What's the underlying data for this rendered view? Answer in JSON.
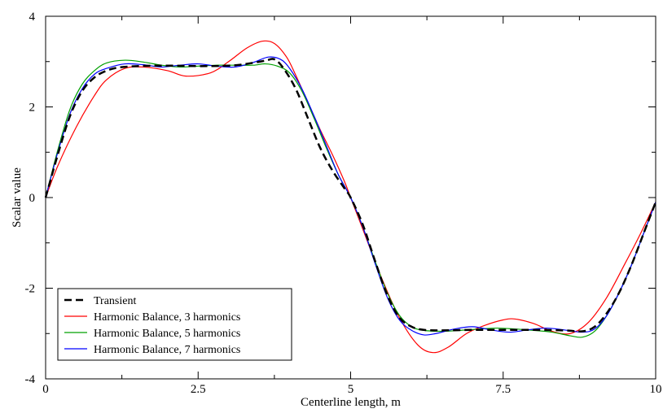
{
  "chart_data": {
    "type": "line",
    "xlabel": "Centerline length, m",
    "ylabel": "Scalar value",
    "xlim": [
      0,
      10
    ],
    "ylim": [
      -4,
      4
    ],
    "x_ticks": [
      "0",
      "2.5",
      "5",
      "7.5",
      "10"
    ],
    "y_ticks": [
      "-4",
      "-2",
      "0",
      "2",
      "4"
    ],
    "grid": false,
    "legend_position": "bottom-left",
    "series": [
      {
        "name": "Transient",
        "color": "#000000",
        "style": "dashed",
        "x": [
          0.0,
          0.2,
          0.4,
          0.6,
          0.8,
          1.0,
          1.2,
          1.5,
          1.8,
          2.1,
          2.5,
          3.0,
          3.3,
          3.6,
          3.75,
          3.9,
          4.1,
          4.3,
          4.5,
          4.7,
          4.9,
          5.0,
          5.2,
          5.4,
          5.6,
          5.8,
          6.0,
          6.2,
          6.5,
          7.0,
          7.5,
          8.0,
          8.5,
          8.8,
          9.0,
          9.2,
          9.4,
          9.6,
          9.8,
          10.0
        ],
        "y": [
          0.0,
          0.95,
          1.8,
          2.35,
          2.65,
          2.8,
          2.87,
          2.9,
          2.91,
          2.91,
          2.9,
          2.91,
          2.95,
          3.02,
          3.05,
          2.85,
          2.4,
          1.75,
          1.1,
          0.6,
          0.2,
          0.0,
          -0.6,
          -1.4,
          -2.15,
          -2.65,
          -2.85,
          -2.92,
          -2.93,
          -2.92,
          -2.92,
          -2.92,
          -2.93,
          -2.95,
          -2.85,
          -2.55,
          -2.1,
          -1.5,
          -0.8,
          -0.1
        ]
      },
      {
        "name": "Harmonic Balance, 3 harmonics",
        "color": "#ff0000",
        "style": "solid",
        "x": [
          0.0,
          0.2,
          0.5,
          0.8,
          1.0,
          1.3,
          1.6,
          2.0,
          2.3,
          2.7,
          3.0,
          3.3,
          3.55,
          3.75,
          3.95,
          4.1,
          4.3,
          4.5,
          4.7,
          4.9,
          5.0,
          5.2,
          5.5,
          5.8,
          6.1,
          6.35,
          6.6,
          6.9,
          7.2,
          7.5,
          7.7,
          8.0,
          8.3,
          8.6,
          8.9,
          9.2,
          9.5,
          9.75,
          10.0
        ],
        "y": [
          0.0,
          0.7,
          1.55,
          2.25,
          2.6,
          2.85,
          2.88,
          2.8,
          2.68,
          2.75,
          3.0,
          3.3,
          3.45,
          3.4,
          3.1,
          2.7,
          2.1,
          1.5,
          0.95,
          0.35,
          0.0,
          -0.7,
          -1.75,
          -2.65,
          -3.25,
          -3.42,
          -3.3,
          -3.0,
          -2.82,
          -2.7,
          -2.68,
          -2.78,
          -2.95,
          -3.0,
          -2.75,
          -2.2,
          -1.45,
          -0.8,
          -0.1
        ]
      },
      {
        "name": "Harmonic Balance, 5 harmonics",
        "color": "#00a000",
        "style": "solid",
        "x": [
          0.0,
          0.2,
          0.4,
          0.6,
          0.8,
          1.0,
          1.3,
          1.6,
          1.9,
          2.2,
          2.5,
          2.8,
          3.1,
          3.4,
          3.6,
          3.8,
          4.0,
          4.2,
          4.4,
          4.6,
          4.8,
          5.0,
          5.2,
          5.4,
          5.6,
          5.8,
          6.0,
          6.2,
          6.5,
          6.8,
          7.1,
          7.4,
          7.7,
          8.0,
          8.3,
          8.6,
          8.8,
          9.0,
          9.2,
          9.4,
          9.6,
          9.8,
          10.0
        ],
        "y": [
          0.0,
          1.05,
          1.95,
          2.5,
          2.8,
          2.97,
          3.03,
          2.99,
          2.92,
          2.88,
          2.9,
          2.92,
          2.92,
          2.92,
          2.95,
          2.9,
          2.75,
          2.35,
          1.75,
          1.1,
          0.5,
          0.0,
          -0.65,
          -1.4,
          -2.1,
          -2.6,
          -2.85,
          -2.93,
          -2.95,
          -2.93,
          -2.9,
          -2.88,
          -2.9,
          -2.93,
          -2.97,
          -3.05,
          -3.08,
          -2.95,
          -2.6,
          -2.1,
          -1.5,
          -0.8,
          -0.1
        ]
      },
      {
        "name": "Harmonic Balance, 7 harmonics",
        "color": "#0000ff",
        "style": "solid",
        "x": [
          0.0,
          0.2,
          0.4,
          0.6,
          0.8,
          1.0,
          1.3,
          1.6,
          1.9,
          2.2,
          2.5,
          2.8,
          3.1,
          3.4,
          3.65,
          3.85,
          4.0,
          4.2,
          4.4,
          4.6,
          4.8,
          5.0,
          5.2,
          5.4,
          5.6,
          5.8,
          6.0,
          6.2,
          6.4,
          6.7,
          7.0,
          7.3,
          7.6,
          7.9,
          8.2,
          8.5,
          8.8,
          9.0,
          9.2,
          9.4,
          9.6,
          9.8,
          10.0
        ],
        "y": [
          0.0,
          1.0,
          1.85,
          2.4,
          2.72,
          2.85,
          2.95,
          2.93,
          2.88,
          2.92,
          2.95,
          2.9,
          2.88,
          2.98,
          3.1,
          3.05,
          2.85,
          2.4,
          1.8,
          1.15,
          0.5,
          0.0,
          -0.65,
          -1.45,
          -2.2,
          -2.7,
          -2.93,
          -3.03,
          -3.0,
          -2.9,
          -2.85,
          -2.92,
          -2.97,
          -2.92,
          -2.88,
          -2.92,
          -2.97,
          -2.9,
          -2.6,
          -2.1,
          -1.5,
          -0.8,
          -0.1
        ]
      }
    ]
  }
}
